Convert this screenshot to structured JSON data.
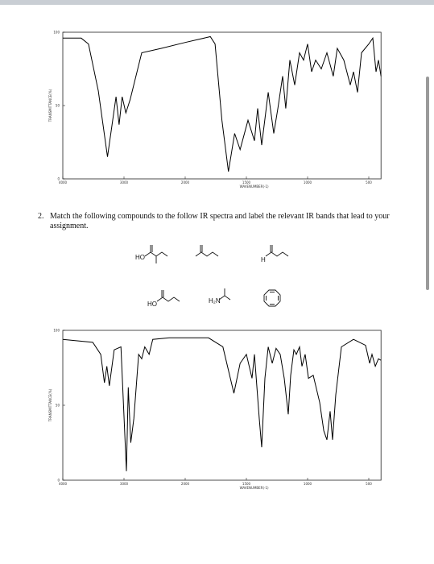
{
  "chart_data": [
    {
      "type": "line",
      "x_label": "WAVENUMBER(-1)",
      "y_label": "TRANSMITTANCE(%)",
      "color": "#000000",
      "x": [
        4000,
        3700,
        3580,
        3420,
        3270,
        3130,
        3080,
        3030,
        2970,
        2900,
        2710,
        2390,
        2000,
        1795,
        1756,
        1700,
        1647,
        1596,
        1551,
        1487,
        1434,
        1408,
        1375,
        1322,
        1276,
        1243,
        1204,
        1178,
        1145,
        1105,
        1066,
        1033,
        1000,
        967,
        934,
        888,
        842,
        790,
        757,
        704,
        651,
        625,
        592,
        559,
        500,
        467,
        441,
        421,
        400
      ],
      "values": [
        96,
        96,
        92,
        60,
        15,
        56,
        37,
        56,
        45,
        54,
        86,
        89,
        93,
        97,
        92,
        40,
        5,
        31,
        20,
        40,
        26,
        48,
        23,
        59,
        31,
        48,
        70,
        48,
        81,
        64,
        86,
        81,
        92,
        73,
        81,
        75,
        86,
        70,
        89,
        81,
        64,
        73,
        59,
        86,
        92,
        96,
        73,
        81,
        70
      ],
      "xlim": [
        4000,
        400
      ],
      "ylim": [
        0,
        100
      ],
      "xticks": [
        4000,
        3000,
        2000,
        1500,
        1000,
        500
      ],
      "yticks": [
        0,
        50,
        100
      ]
    },
    {
      "type": "line",
      "x_label": "WAVENUMBER(-1)",
      "y_label": "TRANSMITTANCE(%)",
      "color": "#000000",
      "x": [
        4000,
        3510,
        3380,
        3320,
        3280,
        3240,
        3160,
        3050,
        2960,
        2930,
        2890,
        2840,
        2760,
        2710,
        2660,
        2590,
        2530,
        2260,
        1810,
        1692,
        1602,
        1551,
        1500,
        1454,
        1434,
        1395,
        1375,
        1349,
        1322,
        1289,
        1257,
        1224,
        1191,
        1158,
        1138,
        1112,
        1092,
        1066,
        1046,
        1020,
        993,
        954,
        901,
        868,
        842,
        816,
        796,
        770,
        724,
        625,
        526,
        493,
        474,
        447,
        421,
        400
      ],
      "values": [
        94,
        92,
        84,
        65,
        76,
        63,
        87,
        89,
        6,
        62,
        25,
        41,
        84,
        81,
        89,
        84,
        94,
        95,
        95,
        89,
        58,
        78,
        84,
        68,
        84,
        41,
        22,
        68,
        89,
        78,
        88,
        84,
        68,
        44,
        70,
        87,
        84,
        89,
        76,
        84,
        68,
        70,
        52,
        33,
        27,
        46,
        27,
        57,
        89,
        94,
        90,
        78,
        84,
        76,
        81,
        80
      ],
      "xlim": [
        4000,
        400
      ],
      "ylim": [
        0,
        100
      ],
      "xticks": [
        4000,
        3000,
        2000,
        1500,
        1000,
        500
      ],
      "yticks": [
        0,
        50,
        100
      ]
    }
  ],
  "question": {
    "number": "2.",
    "text": "Match the following compounds to the follow IR spectra and label the relevant IR bands that lead to your assignment."
  },
  "structure_labels": [
    "HO",
    "H",
    "HO",
    "H₂N"
  ]
}
